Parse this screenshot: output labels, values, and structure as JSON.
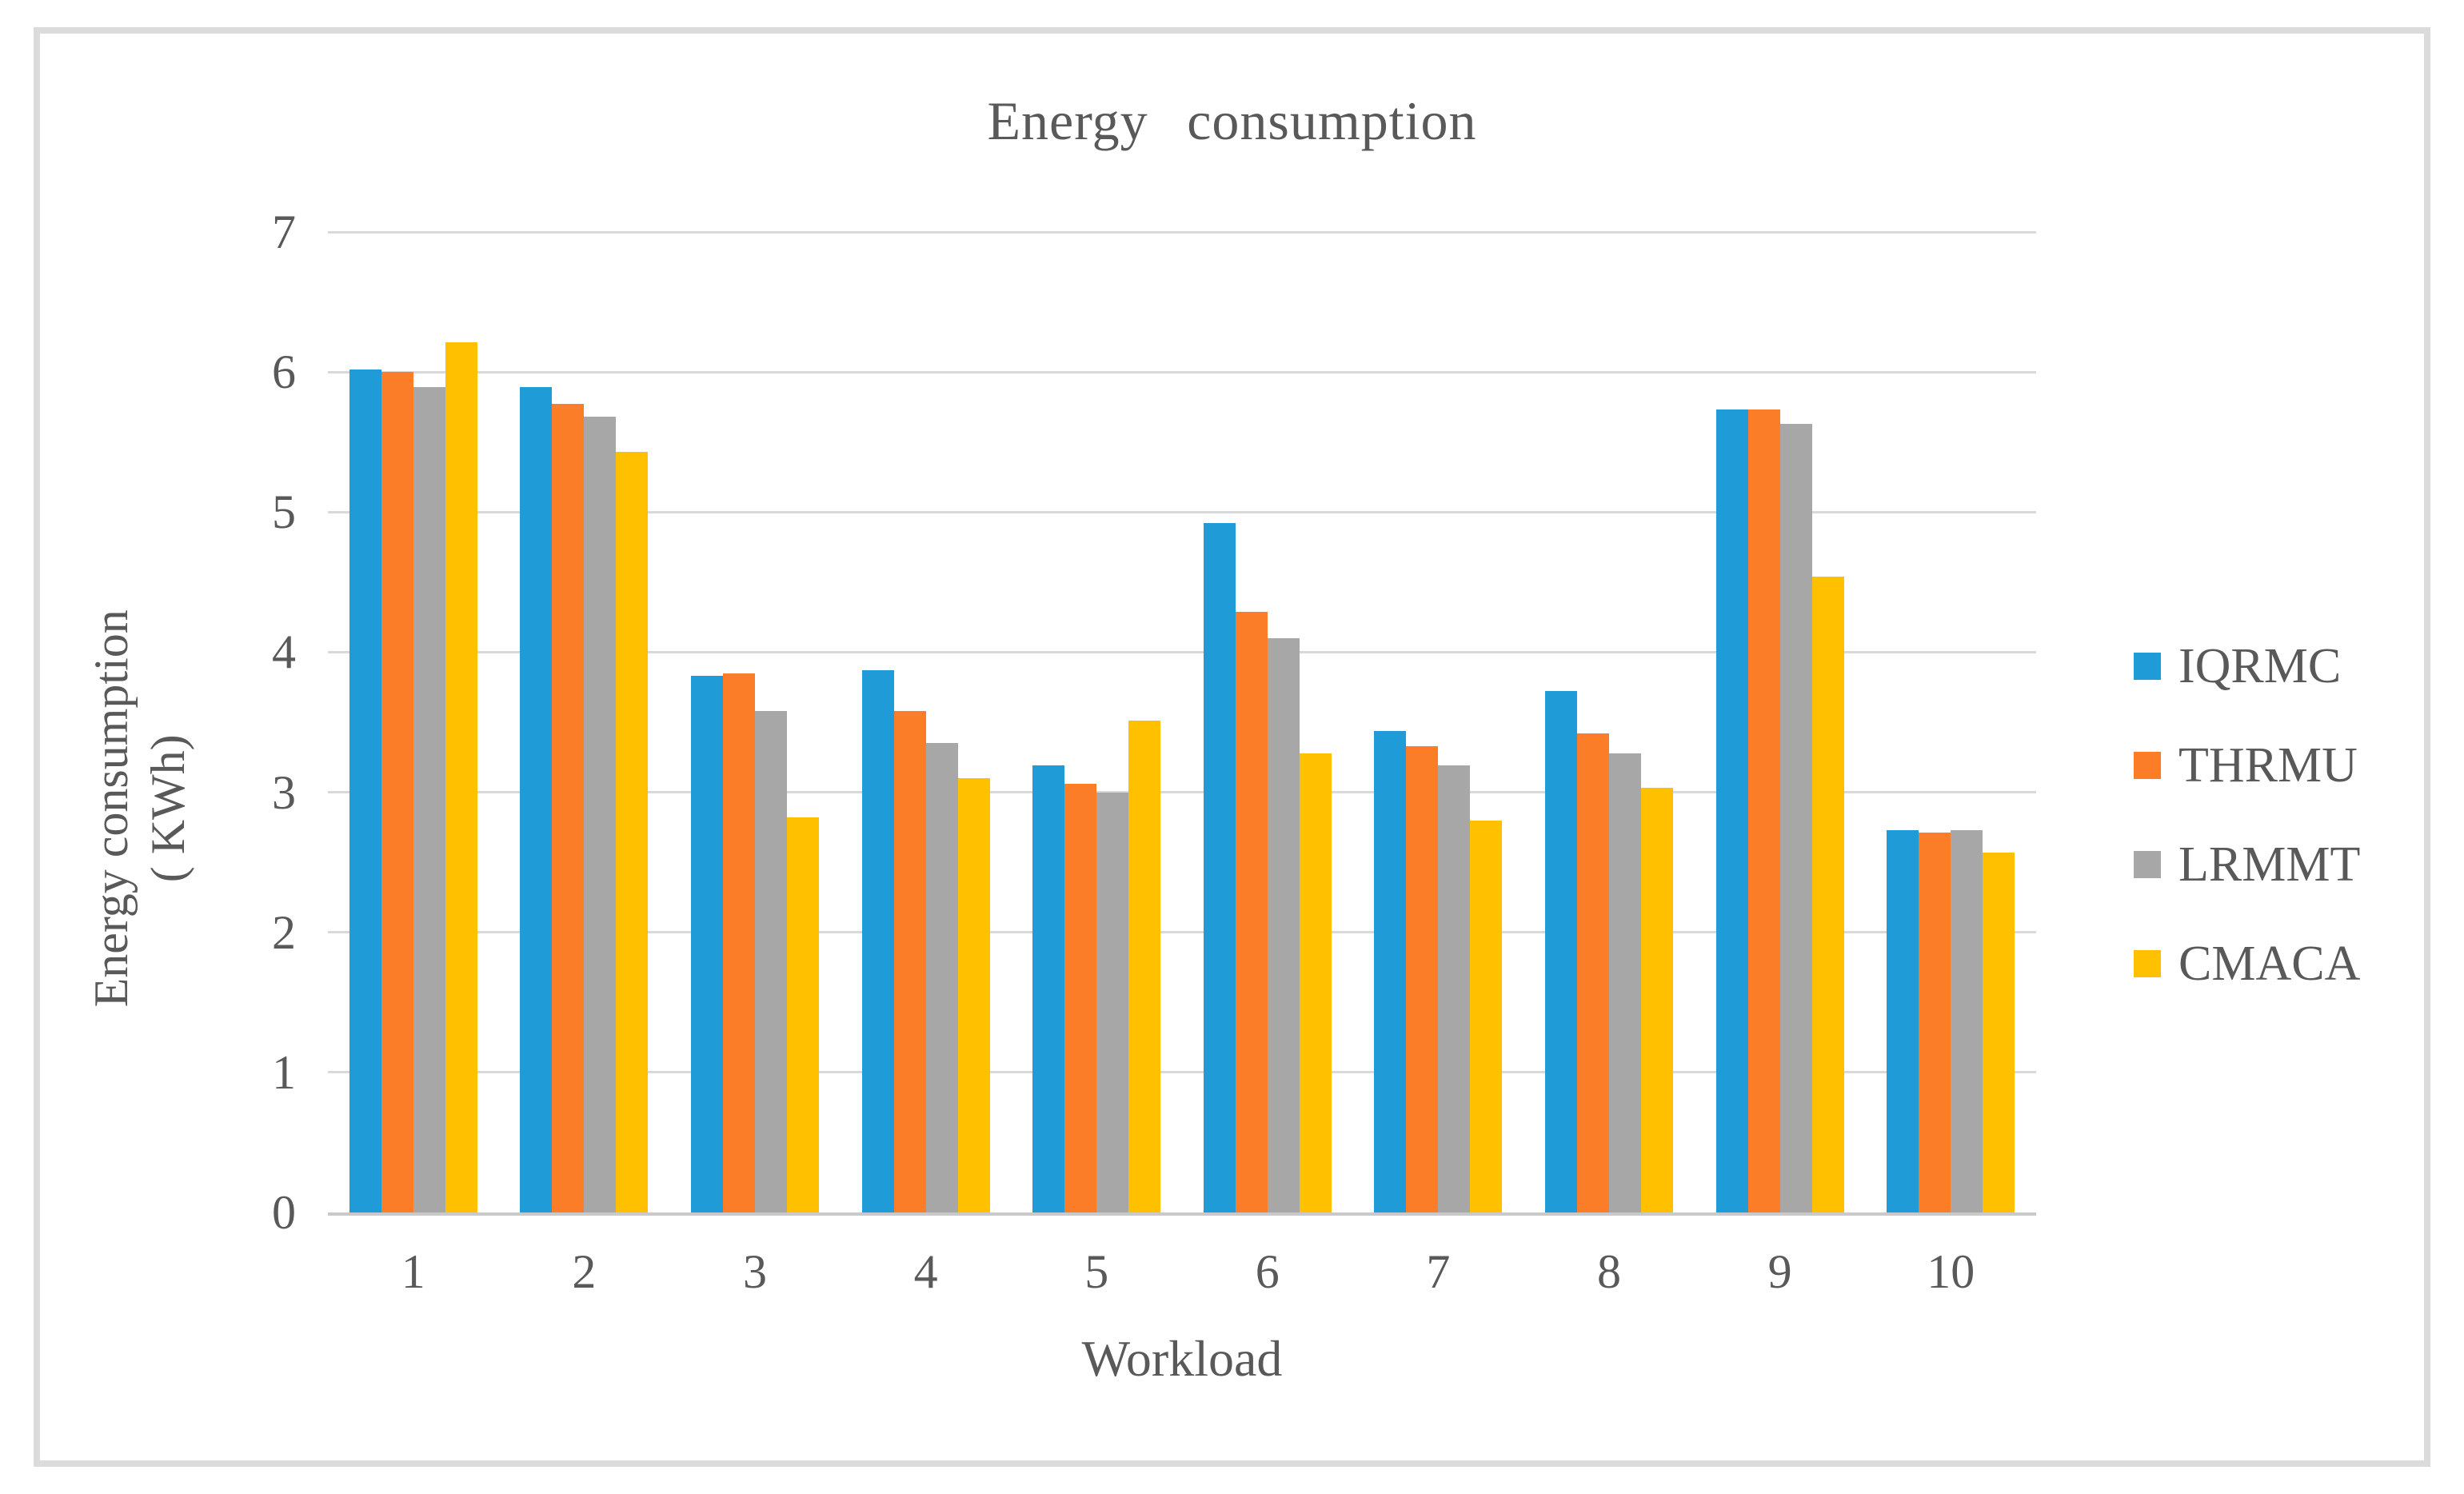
{
  "chart_data": {
    "type": "bar",
    "title": "Energy consumption",
    "xlabel": "Workload",
    "ylabel": "Energy consumption ( KWh)",
    "ylabel_line1": "Energy consumption",
    "ylabel_line2": "( KWh)",
    "categories": [
      "1",
      "2",
      "3",
      "4",
      "5",
      "6",
      "7",
      "8",
      "9",
      "10"
    ],
    "series": [
      {
        "name": "IQRMC",
        "color": "#1F9BD7",
        "values": [
          6.02,
          5.89,
          3.83,
          3.87,
          3.19,
          4.92,
          3.44,
          3.72,
          5.73,
          2.73
        ]
      },
      {
        "name": "THRMU",
        "color": "#FB7D27",
        "values": [
          6.0,
          5.77,
          3.85,
          3.58,
          3.06,
          4.29,
          3.33,
          3.42,
          5.73,
          2.71
        ]
      },
      {
        "name": "LRMMT",
        "color": "#A7A7A7",
        "values": [
          5.89,
          5.68,
          3.58,
          3.35,
          3.0,
          4.1,
          3.19,
          3.28,
          5.63,
          2.73
        ]
      },
      {
        "name": "CMACA",
        "color": "#FFC000",
        "values": [
          6.21,
          5.43,
          2.82,
          3.1,
          3.51,
          3.28,
          2.8,
          3.03,
          4.54,
          2.57
        ]
      }
    ],
    "ylim": [
      0,
      7
    ],
    "yticks": [
      "0",
      "1",
      "2",
      "3",
      "4",
      "5",
      "6",
      "7"
    ],
    "grid": true,
    "legend_position": "right"
  },
  "ui_colors": {
    "text": "#595959",
    "gridline": "#D9D9D9",
    "axis_line": "#C9C9C9",
    "frame_border": "#DBDBDB",
    "background": "#FFFFFF"
  }
}
